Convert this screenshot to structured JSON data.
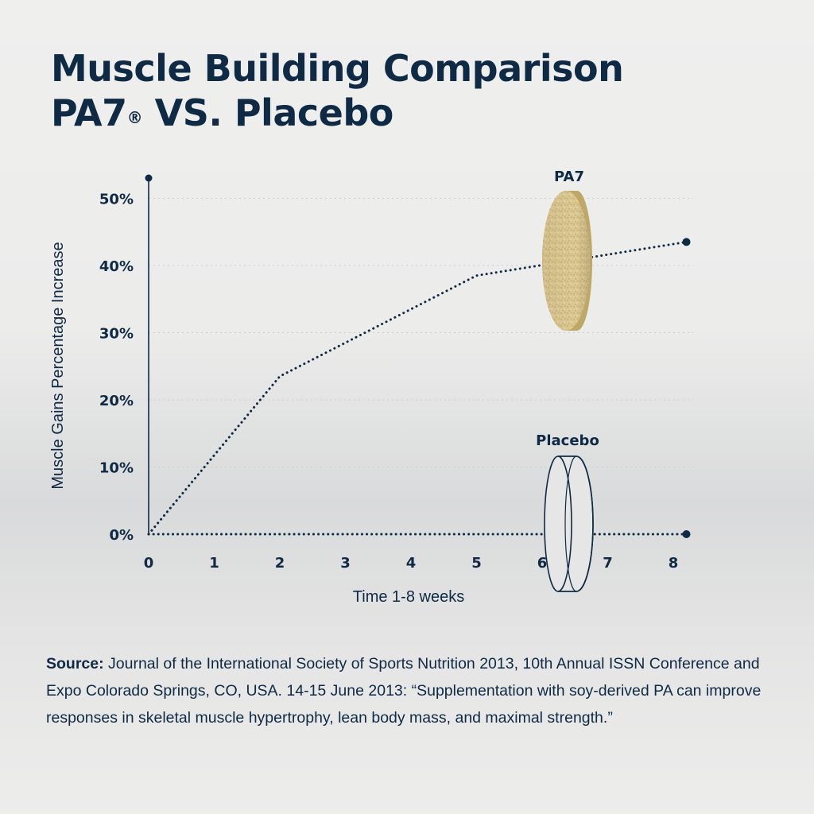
{
  "title": {
    "line1": "Muscle Building Comparison",
    "line2_main": "PA7",
    "line2_mark": "®",
    "line2_rest": " VS. Placebo"
  },
  "chart_data": {
    "type": "line",
    "xlabel": "Time 1-8 weeks",
    "ylabel": "Muscle Gains Percentage Increase",
    "xlim": [
      0,
      8.2
    ],
    "ylim": [
      0,
      50
    ],
    "x_ticks": [
      {
        "value": 0,
        "label": "0"
      },
      {
        "value": 1,
        "label": "1"
      },
      {
        "value": 2,
        "label": "2"
      },
      {
        "value": 3,
        "label": "3"
      },
      {
        "value": 4,
        "label": "4"
      },
      {
        "value": 5,
        "label": "5"
      },
      {
        "value": 6,
        "label": "6"
      },
      {
        "value": 7,
        "label": "7"
      },
      {
        "value": 8,
        "label": "8"
      }
    ],
    "y_ticks": [
      {
        "value": 0,
        "label": "0%"
      },
      {
        "value": 10,
        "label": "10%"
      },
      {
        "value": 20,
        "label": "20%"
      },
      {
        "value": 30,
        "label": "30%"
      },
      {
        "value": 40,
        "label": "40%"
      },
      {
        "value": 50,
        "label": "50%"
      }
    ],
    "grid": true,
    "series": [
      {
        "name": "PA7",
        "style": "dotted",
        "color": "#0f2a45",
        "points": [
          [
            0,
            0
          ],
          [
            2,
            23.5
          ],
          [
            5,
            38.5
          ],
          [
            8.2,
            43.5
          ]
        ]
      },
      {
        "name": "Placebo",
        "style": "dotted",
        "color": "#0f2a45",
        "points": [
          [
            0,
            0
          ],
          [
            8.2,
            0
          ]
        ]
      }
    ]
  },
  "source": {
    "label": "Source:",
    "text": " Journal of the International Society of Sports Nutrition 2013, 10th Annual ISSN Conference and Expo Colorado Springs, CO, USA. 14-15 June 2013: “Supplementation with soy-derived PA can improve responses in skeletal muscle hypertrophy, lean body mass, and maximal strength.”"
  },
  "colors": {
    "navy": "#0f2a45",
    "tablet": "#d8c48e",
    "grid": "#c9cbce"
  },
  "icons": {
    "pa7": "tablet-icon",
    "placebo": "tablet-outline-icon"
  }
}
